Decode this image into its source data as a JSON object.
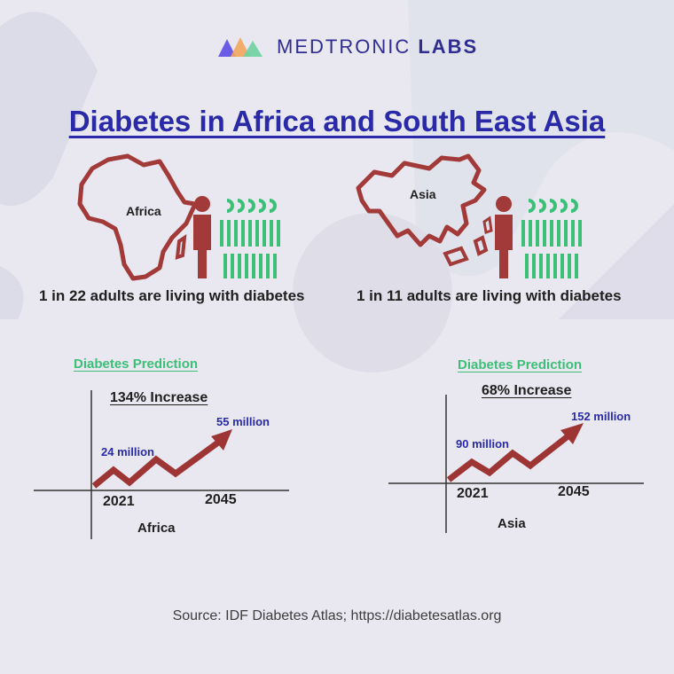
{
  "logo": {
    "brand_light": "MEDTRONIC",
    "brand_bold": "LABS"
  },
  "title": "Diabetes in Africa and South East Asia",
  "colors": {
    "title": "#2a2aa8",
    "map": "#a13a38",
    "person_highlight": "#a13a38",
    "people": "#3dbf78",
    "arrow": "#9e3535",
    "prediction": "#3dbf78"
  },
  "icons": [
    "logo-mark-icon",
    "africa-map-icon",
    "asia-map-icon",
    "person-icon",
    "people-group-icon",
    "arrow-icon"
  ],
  "regions": [
    {
      "map_label": "Africa",
      "stat": "1 in 22 adults are living with diabetes",
      "prediction_title": "Diabetes Prediction",
      "increase": "134% Increase",
      "start_value": "24 million",
      "end_value": "55 million",
      "start_year": "2021",
      "end_year": "2045",
      "region_label": "Africa"
    },
    {
      "map_label": "Asia",
      "stat": "1 in 11 adults are living with diabetes",
      "prediction_title": "Diabetes Prediction",
      "increase": "68% Increase",
      "start_value": "90 million",
      "end_value": "152 million",
      "start_year": "2021",
      "end_year": "2045",
      "region_label": "Asia"
    }
  ],
  "source": "Source: IDF Diabetes Atlas; https://diabetesatlas.org"
}
